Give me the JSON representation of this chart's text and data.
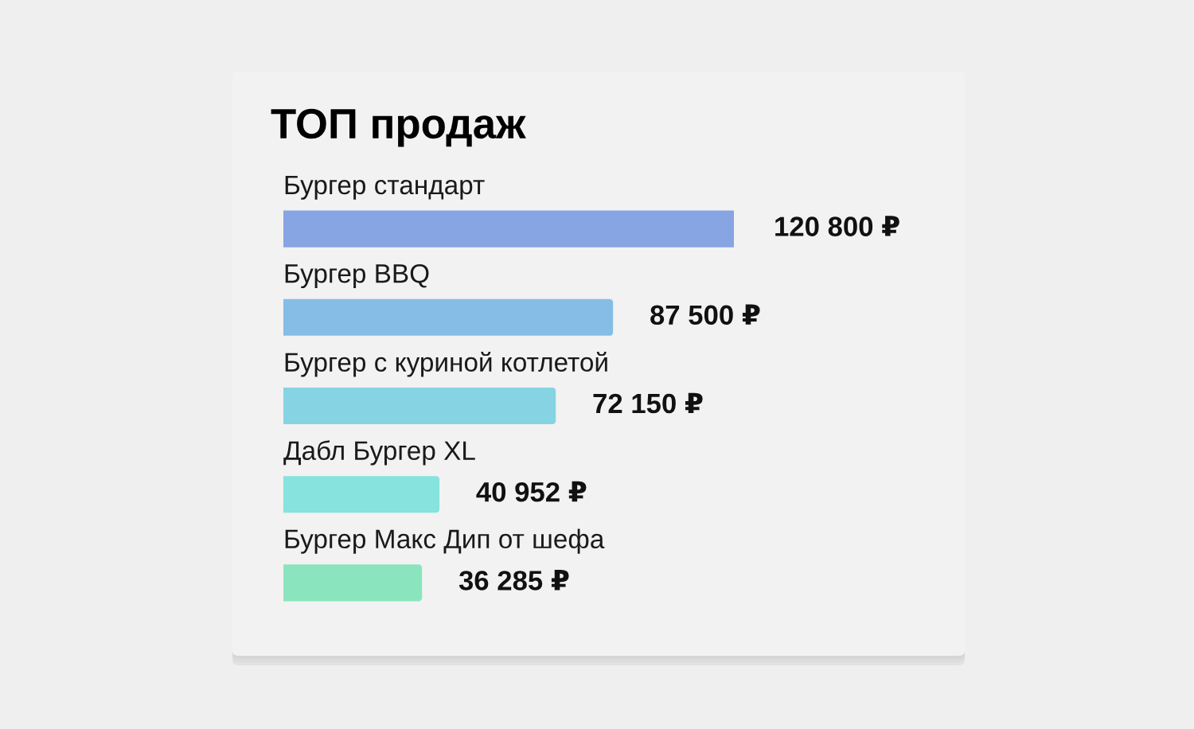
{
  "chart_data": {
    "type": "bar",
    "orientation": "horizontal",
    "title": "ТОП продаж",
    "categories": [
      "Бургер стандарт",
      "Бургер BBQ",
      "Бургер с куриной котлетой",
      "Дабл Бургер XL",
      "Бургер Макс Дип от шефа"
    ],
    "values": [
      120800,
      87500,
      72150,
      40952,
      36285
    ],
    "colors": [
      "#87a4e3",
      "#86bde6",
      "#86d3e3",
      "#86e3de",
      "#8ae5bf"
    ],
    "value_labels": [
      "120 800 ₽",
      "87 500 ₽",
      "72 150 ₽",
      "40 952 ₽",
      "36 285 ₽"
    ],
    "tick_labels": false
  }
}
